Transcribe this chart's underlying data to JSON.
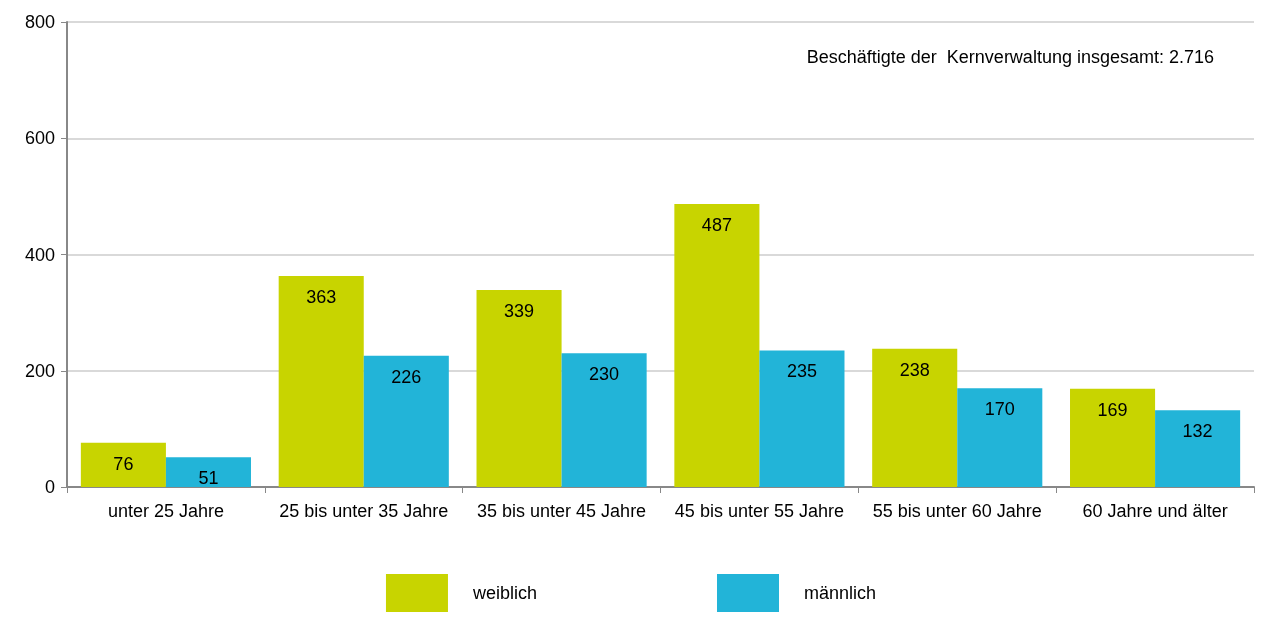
{
  "chart_data": {
    "type": "bar",
    "categories": [
      "unter 25 Jahre",
      "25 bis unter 35 Jahre",
      "35 bis unter 45 Jahre",
      "45 bis unter 55 Jahre",
      "55 bis unter 60 Jahre",
      "60 Jahre und älter"
    ],
    "series": [
      {
        "name": "weiblich",
        "color": "#c8d400",
        "values": [
          76,
          363,
          339,
          487,
          238,
          169
        ]
      },
      {
        "name": "männlich",
        "color": "#22b4d8",
        "values": [
          51,
          226,
          230,
          235,
          170,
          132
        ]
      }
    ],
    "ylim": [
      0,
      800
    ],
    "yticks": [
      0,
      200,
      400,
      600,
      800
    ],
    "grid": "y",
    "legend": "bottom",
    "data_labels": true,
    "annotations": [
      "Beschäftigte der  Kernverwaltung insgesamt: 2.716"
    ]
  }
}
